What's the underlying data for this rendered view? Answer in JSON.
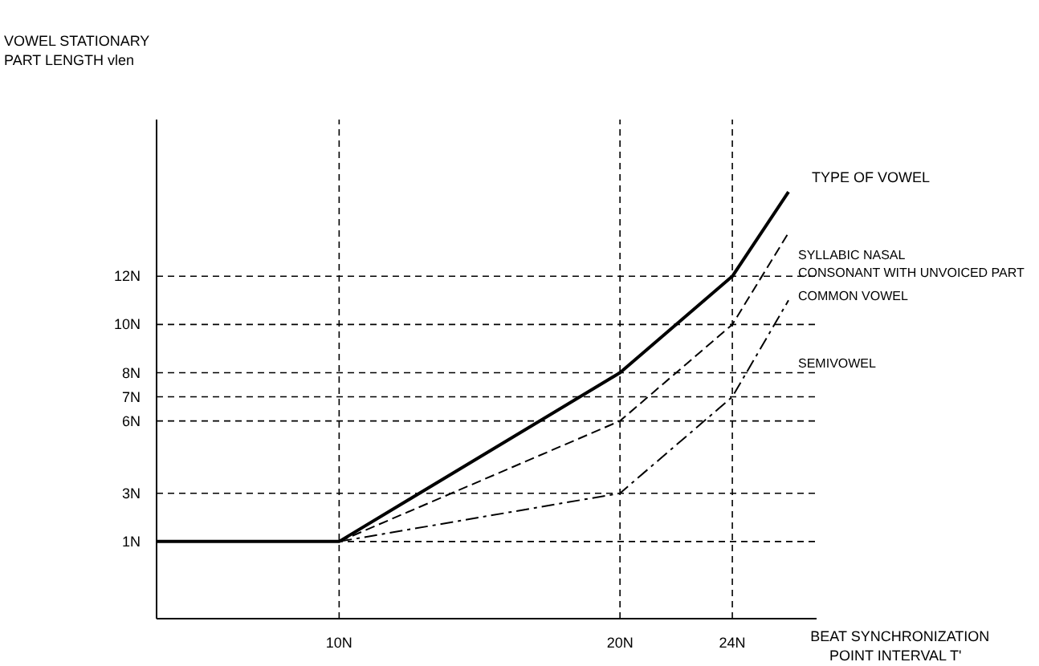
{
  "chart_data": {
    "type": "line",
    "xlabel": "BEAT SYNCHRONIZATION\nPOINT INTERVAL   T'",
    "ylabel": "VOWEL STATIONARY\nPART LENGTH  vlen",
    "legend_title": "TYPE OF VOWEL",
    "xlim": [
      3.5,
      27
    ],
    "ylim": [
      -2.2,
      18.5
    ],
    "xticks": [
      {
        "value": 10,
        "label": "10N"
      },
      {
        "value": 20,
        "label": "20N"
      },
      {
        "value": 24,
        "label": "24N"
      }
    ],
    "yticks": [
      {
        "value": 1,
        "label": "1N"
      },
      {
        "value": 3,
        "label": "3N"
      },
      {
        "value": 6,
        "label": "6N"
      },
      {
        "value": 7,
        "label": "7N"
      },
      {
        "value": 8,
        "label": "8N"
      },
      {
        "value": 10,
        "label": "10N"
      },
      {
        "value": 12,
        "label": "12N"
      }
    ],
    "grid": true,
    "series": [
      {
        "name": "SYLLABIC NASAL\nCONSONANT WITH UNVOICED PART",
        "color": "#000000",
        "line_style": "solid",
        "x": [
          3.5,
          10,
          20,
          24,
          26
        ],
        "values": [
          1,
          1,
          8,
          12,
          15.5
        ]
      },
      {
        "name": "COMMON VOWEL",
        "color": "#000000",
        "line_style": "dashed",
        "x": [
          10,
          20,
          24,
          26
        ],
        "values": [
          1,
          6,
          10,
          13.8
        ]
      },
      {
        "name": "SEMIVOWEL",
        "color": "#000000",
        "line_style": "dashdot",
        "x": [
          10,
          20,
          24,
          26
        ],
        "values": [
          1,
          3,
          7,
          11
        ]
      }
    ]
  }
}
